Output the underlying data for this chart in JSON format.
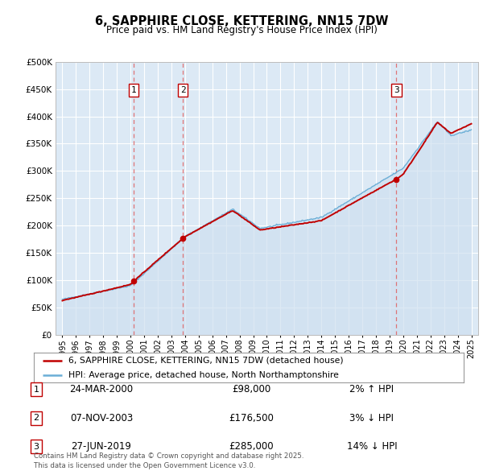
{
  "title": "6, SAPPHIRE CLOSE, KETTERING, NN15 7DW",
  "subtitle": "Price paid vs. HM Land Registry's House Price Index (HPI)",
  "legend_line1": "6, SAPPHIRE CLOSE, KETTERING, NN15 7DW (detached house)",
  "legend_line2": "HPI: Average price, detached house, North Northamptonshire",
  "footer": "Contains HM Land Registry data © Crown copyright and database right 2025.\nThis data is licensed under the Open Government Licence v3.0.",
  "sale_markers": [
    {
      "label": "1",
      "date": "24-MAR-2000",
      "price": 98000,
      "pct": "2%",
      "dir": "↑",
      "x_year": 2000.23
    },
    {
      "label": "2",
      "date": "07-NOV-2003",
      "price": 176500,
      "pct": "3%",
      "dir": "↓",
      "x_year": 2003.85
    },
    {
      "label": "3",
      "date": "27-JUN-2019",
      "price": 285000,
      "pct": "14%",
      "dir": "↓",
      "x_year": 2019.5
    }
  ],
  "hpi_fill_color": "#cfe0f0",
  "hpi_line_color": "#6baed6",
  "price_color": "#c00000",
  "background_plot": "#dce9f5",
  "background_fig": "#ffffff",
  "grid_color": "#ffffff",
  "marker_box_color": "#c00000",
  "vline_color": "#e06060",
  "ylim": [
    0,
    500000
  ],
  "xlim_start": 1994.5,
  "xlim_end": 2025.5,
  "yticks": [
    0,
    50000,
    100000,
    150000,
    200000,
    250000,
    300000,
    350000,
    400000,
    450000,
    500000
  ],
  "xtick_years": [
    1995,
    1996,
    1997,
    1998,
    1999,
    2000,
    2001,
    2002,
    2003,
    2004,
    2005,
    2006,
    2007,
    2008,
    2009,
    2010,
    2011,
    2012,
    2013,
    2014,
    2015,
    2016,
    2017,
    2018,
    2019,
    2020,
    2021,
    2022,
    2023,
    2024,
    2025
  ]
}
